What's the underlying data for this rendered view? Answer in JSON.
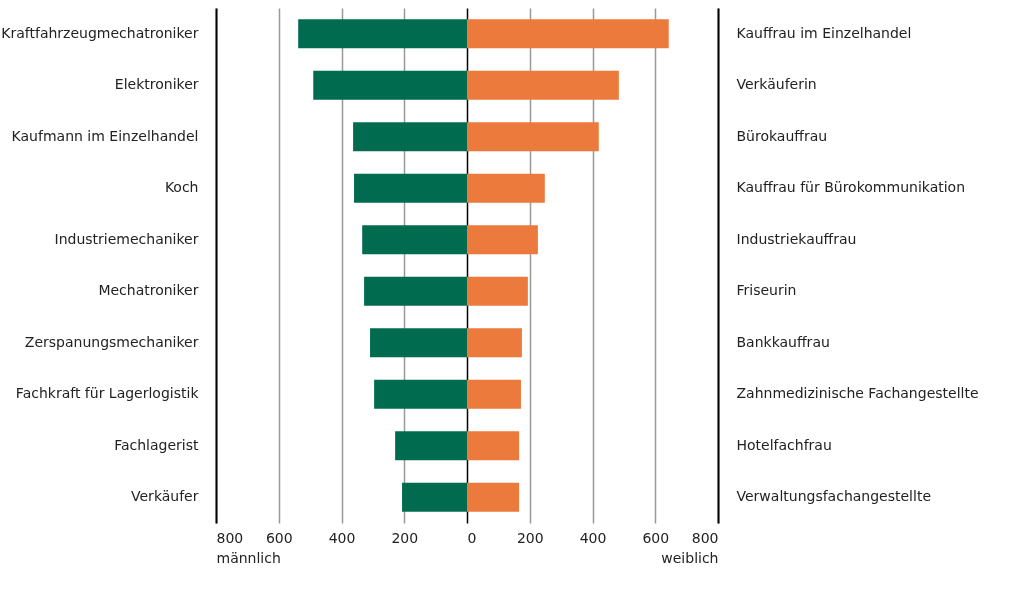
{
  "chart_data": [
    {
      "type": "bar",
      "orientation": "horizontal",
      "xlabel": "männlich",
      "categories": [
        "Kraftfahrzeugmechatroniker",
        "Elektroniker",
        "Kaufmann im Einzelhandel",
        "Koch",
        "Industriemechaniker",
        "Mechatroniker",
        "Zerspanungsmechaniker",
        "Fachkraft für Lagerlogistik",
        "Fachlagerist",
        "Verkäufer"
      ],
      "values": [
        538,
        490,
        363,
        360,
        334,
        328,
        309,
        296,
        229,
        207
      ],
      "color": "#006b4f",
      "xlim": [
        800,
        0
      ],
      "xticks": [
        800,
        600,
        400,
        200,
        {
          "value": 0,
          "label": null
        }
      ],
      "grid": "x"
    },
    {
      "type": "bar",
      "orientation": "horizontal",
      "xlabel": "weiblich",
      "categories": [
        "Kauffrau im Einzelhandel",
        "Verkäuferin",
        "Bürokauffrau",
        "Kauffrau für Bürokommunikation",
        "Industriekauffrau",
        "Friseurin",
        "Bankkauffrau",
        "Zahnmedizinische Fachangestellte",
        "Hotelfachfrau",
        "Verwaltungsfachangestellte"
      ],
      "values": [
        643,
        484,
        420,
        248,
        226,
        194,
        175,
        172,
        166,
        166
      ],
      "color": "#ec7a3c",
      "xlim": [
        0,
        800
      ],
      "xticks": [
        0,
        200,
        400,
        600,
        800
      ],
      "grid": "x"
    }
  ]
}
